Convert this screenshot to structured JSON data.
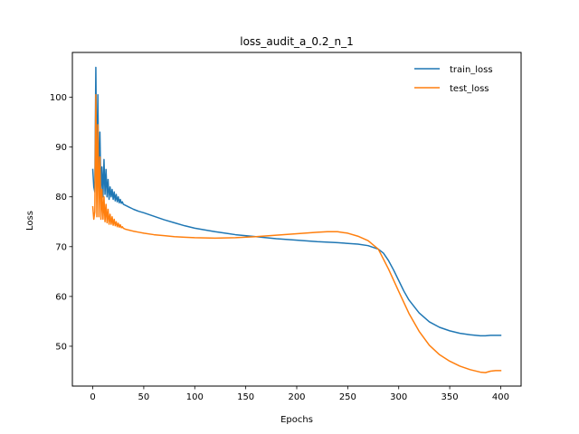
{
  "chart_data": {
    "type": "line",
    "title": "loss_audit_a_0.2_n_1",
    "xlabel": "Epochs",
    "ylabel": "Loss",
    "xlim": [
      -20,
      420
    ],
    "ylim": [
      42,
      109
    ],
    "xticks": [
      0,
      50,
      100,
      150,
      200,
      250,
      300,
      350,
      400
    ],
    "yticks": [
      50,
      60,
      70,
      80,
      90,
      100
    ],
    "grid": false,
    "legend": "top-right",
    "series": [
      {
        "name": "train_loss",
        "color": "#1f77b4",
        "x": [
          0,
          1,
          2,
          3,
          4,
          5,
          6,
          7,
          8,
          9,
          10,
          11,
          12,
          13,
          14,
          15,
          16,
          17,
          18,
          19,
          20,
          21,
          22,
          23,
          24,
          25,
          26,
          27,
          28,
          29,
          30,
          32,
          34,
          36,
          38,
          40,
          45,
          50,
          60,
          70,
          80,
          90,
          100,
          120,
          140,
          160,
          180,
          200,
          220,
          240,
          260,
          270,
          280,
          285,
          290,
          295,
          300,
          305,
          310,
          320,
          330,
          340,
          350,
          360,
          370,
          380,
          385,
          390,
          395,
          400
        ],
        "y": [
          85.5,
          82,
          81,
          106,
          83,
          100.5,
          80,
          93,
          81,
          86,
          80,
          87.5,
          80.5,
          85.5,
          80,
          83.5,
          79.5,
          82,
          80,
          81.5,
          79.5,
          81,
          79.2,
          80.5,
          79,
          80,
          78.8,
          79.5,
          78.7,
          79,
          78.5,
          78.3,
          78.1,
          77.9,
          77.7,
          77.5,
          77.1,
          76.8,
          76.1,
          75.4,
          74.8,
          74.2,
          73.7,
          73.0,
          72.4,
          72.0,
          71.6,
          71.3,
          71.0,
          70.8,
          70.5,
          70.2,
          69.5,
          68.7,
          67.2,
          65.3,
          63.2,
          61.1,
          59.3,
          56.7,
          54.9,
          53.8,
          53.1,
          52.6,
          52.3,
          52.1,
          52.1,
          52.2,
          52.2,
          52.2
        ]
      },
      {
        "name": "test_loss",
        "color": "#ff7f0e",
        "x": [
          0,
          1,
          2,
          3,
          4,
          5,
          6,
          7,
          8,
          9,
          10,
          11,
          12,
          13,
          14,
          15,
          16,
          17,
          18,
          19,
          20,
          21,
          22,
          23,
          24,
          25,
          26,
          27,
          28,
          29,
          30,
          32,
          34,
          36,
          38,
          40,
          45,
          50,
          60,
          70,
          80,
          90,
          100,
          120,
          140,
          160,
          180,
          200,
          220,
          230,
          240,
          250,
          260,
          270,
          280,
          290,
          300,
          310,
          320,
          330,
          340,
          350,
          360,
          370,
          380,
          385,
          390,
          395,
          400
        ],
        "y": [
          78,
          75.5,
          77,
          100.5,
          76,
          94.5,
          76,
          88,
          75.5,
          81.5,
          75.5,
          80,
          75,
          78.5,
          74.8,
          77.5,
          74.5,
          76.5,
          74.5,
          76,
          74.3,
          75.5,
          74.2,
          75,
          74,
          74.7,
          73.9,
          74.4,
          73.8,
          74,
          73.7,
          73.5,
          73.4,
          73.3,
          73.2,
          73.1,
          72.9,
          72.7,
          72.4,
          72.2,
          72.0,
          71.9,
          71.8,
          71.7,
          71.8,
          72.0,
          72.3,
          72.6,
          72.9,
          73.0,
          73.0,
          72.7,
          72.1,
          71.2,
          69.5,
          65.5,
          61.0,
          56.6,
          53.0,
          50.2,
          48.3,
          47.0,
          46.0,
          45.3,
          44.8,
          44.7,
          45.0,
          45.1,
          45.1
        ]
      }
    ]
  }
}
